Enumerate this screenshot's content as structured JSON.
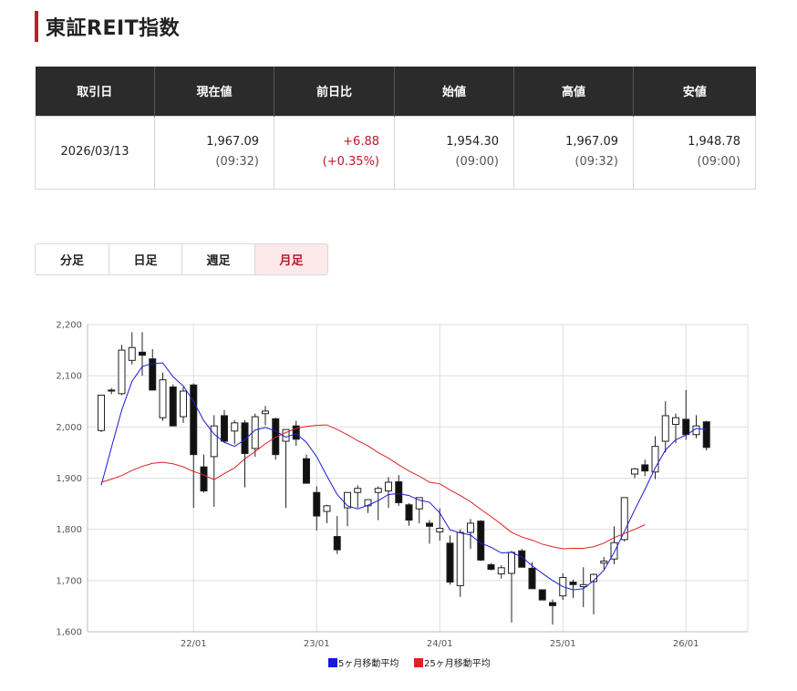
{
  "page": {
    "title": "東証REIT指数"
  },
  "quote": {
    "headers": [
      "取引日",
      "現在値",
      "前日比",
      "始値",
      "高値",
      "安値"
    ],
    "date": "2026/03/13",
    "current": {
      "value": "1,967.09",
      "time": "(09:32)"
    },
    "change": {
      "value": "+6.88",
      "percent": "(+0.35%)"
    },
    "open": {
      "value": "1,954.30",
      "time": "(09:00)"
    },
    "high": {
      "value": "1,967.09",
      "time": "(09:32)"
    },
    "low": {
      "value": "1,948.78",
      "time": "(09:00)"
    }
  },
  "tabs": [
    {
      "label": "分足",
      "active": false
    },
    {
      "label": "日足",
      "active": false
    },
    {
      "label": "週足",
      "active": false
    },
    {
      "label": "月足",
      "active": true
    }
  ],
  "colors": {
    "accent": "#b8202c",
    "up_text": "#c0142b",
    "ma5": "#1a1adb",
    "ma25": "#dd2222",
    "header_bg": "#2b2b2b"
  },
  "chart_data": {
    "type": "candlestick",
    "ylim": [
      1600,
      2200
    ],
    "yticks": [
      1600,
      1700,
      1800,
      1900,
      2000,
      2100,
      2200
    ],
    "ytick_labels": [
      "1,600",
      "1,700",
      "1,800",
      "1,900",
      "2,000",
      "2,100",
      "2,200"
    ],
    "x_ticks": [
      {
        "index": 9,
        "label": "22/01"
      },
      {
        "index": 21,
        "label": "23/01"
      },
      {
        "index": 33,
        "label": "24/01"
      },
      {
        "index": 45,
        "label": "25/01"
      },
      {
        "index": 57,
        "label": "26/01"
      }
    ],
    "candles": [
      [
        1993,
        2062,
        1990,
        2062
      ],
      [
        2072,
        2076,
        2064,
        2070
      ],
      [
        2065,
        2160,
        2062,
        2150
      ],
      [
        2130,
        2185,
        2122,
        2155
      ],
      [
        2146,
        2185,
        2100,
        2140
      ],
      [
        2133,
        2152,
        2072,
        2072
      ],
      [
        2018,
        2106,
        2012,
        2092
      ],
      [
        2078,
        2083,
        2002,
        2002
      ],
      [
        2020,
        2078,
        2008,
        2070
      ],
      [
        2082,
        2085,
        1842,
        1946
      ],
      [
        1922,
        1946,
        1872,
        1875
      ],
      [
        1942,
        2023,
        1844,
        2002
      ],
      [
        2022,
        2033,
        1968,
        1972
      ],
      [
        1992,
        2013,
        1966,
        2008
      ],
      [
        2008,
        2013,
        1882,
        1948
      ],
      [
        1958,
        2026,
        1942,
        2020
      ],
      [
        2026,
        2041,
        2003,
        2031
      ],
      [
        2016,
        2018,
        1936,
        1946
      ],
      [
        1972,
        1995,
        1842,
        1995
      ],
      [
        2002,
        2012,
        1963,
        1976
      ],
      [
        1938,
        1946,
        1895,
        1890
      ],
      [
        1872,
        1884,
        1798,
        1826
      ],
      [
        1835,
        1848,
        1812,
        1846
      ],
      [
        1786,
        1826,
        1752,
        1760
      ],
      [
        1842,
        1871,
        1806,
        1872
      ],
      [
        1872,
        1886,
        1842,
        1880
      ],
      [
        1846,
        1858,
        1832,
        1858
      ],
      [
        1872,
        1884,
        1818,
        1880
      ],
      [
        1875,
        1902,
        1842,
        1892
      ],
      [
        1893,
        1906,
        1846,
        1852
      ],
      [
        1848,
        1851,
        1807,
        1818
      ],
      [
        1840,
        1860,
        1812,
        1862
      ],
      [
        1812,
        1818,
        1772,
        1806
      ],
      [
        1795,
        1841,
        1778,
        1802
      ],
      [
        1773,
        1788,
        1692,
        1697
      ],
      [
        1690,
        1800,
        1668,
        1794
      ],
      [
        1794,
        1820,
        1762,
        1812
      ],
      [
        1816,
        1818,
        1738,
        1740
      ],
      [
        1731,
        1734,
        1720,
        1722
      ],
      [
        1713,
        1730,
        1704,
        1725
      ],
      [
        1714,
        1758,
        1618,
        1755
      ],
      [
        1758,
        1762,
        1728,
        1726
      ],
      [
        1724,
        1736,
        1685,
        1684
      ],
      [
        1682,
        1682,
        1662,
        1662
      ],
      [
        1657,
        1663,
        1614,
        1651
      ],
      [
        1670,
        1714,
        1662,
        1706
      ],
      [
        1697,
        1702,
        1666,
        1692
      ],
      [
        1688,
        1726,
        1648,
        1692
      ],
      [
        1698,
        1714,
        1634,
        1712
      ],
      [
        1734,
        1746,
        1722,
        1738
      ],
      [
        1742,
        1806,
        1732,
        1774
      ],
      [
        1780,
        1862,
        1776,
        1862
      ],
      [
        1908,
        1920,
        1900,
        1918
      ],
      [
        1926,
        1936,
        1904,
        1914
      ],
      [
        1912,
        1982,
        1898,
        1962
      ],
      [
        1972,
        2050,
        1950,
        2022
      ],
      [
        2005,
        2026,
        1968,
        2018
      ],
      [
        2015,
        2072,
        1975,
        1985
      ],
      [
        1985,
        2023,
        1978,
        2002
      ],
      [
        2010,
        2012,
        1954,
        1960
      ]
    ],
    "series": [
      {
        "name": "5ヶ月移動平均",
        "color": "#1a1adb",
        "values": [
          1886,
          1960,
          2033,
          2089,
          2118,
          2124,
          2125,
          2098,
          2080,
          2050,
          2012,
          1986,
          1970,
          1962,
          1975,
          1994,
          1999,
          1992,
          1980,
          1987,
          1970,
          1942,
          1904,
          1868,
          1846,
          1840,
          1847,
          1856,
          1868,
          1870,
          1866,
          1857,
          1853,
          1832,
          1799,
          1793,
          1789,
          1773,
          1765,
          1754,
          1755,
          1746,
          1729,
          1714,
          1700,
          1688,
          1682,
          1684,
          1700,
          1720,
          1755,
          1796,
          1838,
          1878,
          1920,
          1955,
          1975,
          1984,
          1997,
          1995
        ]
      },
      {
        "name": "25ヶ月移動平均",
        "color": "#dd2222",
        "values": [
          1892,
          1898,
          1905,
          1915,
          1923,
          1929,
          1931,
          1928,
          1922,
          1913,
          1906,
          1897,
          1909,
          1920,
          1938,
          1952,
          1967,
          1980,
          1989,
          1997,
          2001,
          2003,
          2004,
          1995,
          1985,
          1973,
          1963,
          1950,
          1939,
          1926,
          1914,
          1904,
          1892,
          1889,
          1877,
          1866,
          1854,
          1839,
          1825,
          1810,
          1794,
          1785,
          1779,
          1771,
          1766,
          1762,
          1763,
          1763,
          1766,
          1773,
          1784,
          1792,
          1800,
          1809
        ]
      }
    ],
    "legend": [
      {
        "label": "5ヶ月移動平均",
        "color": "#1a1adb"
      },
      {
        "label": "25ヶ月移動平均",
        "color": "#dd2222"
      }
    ]
  }
}
